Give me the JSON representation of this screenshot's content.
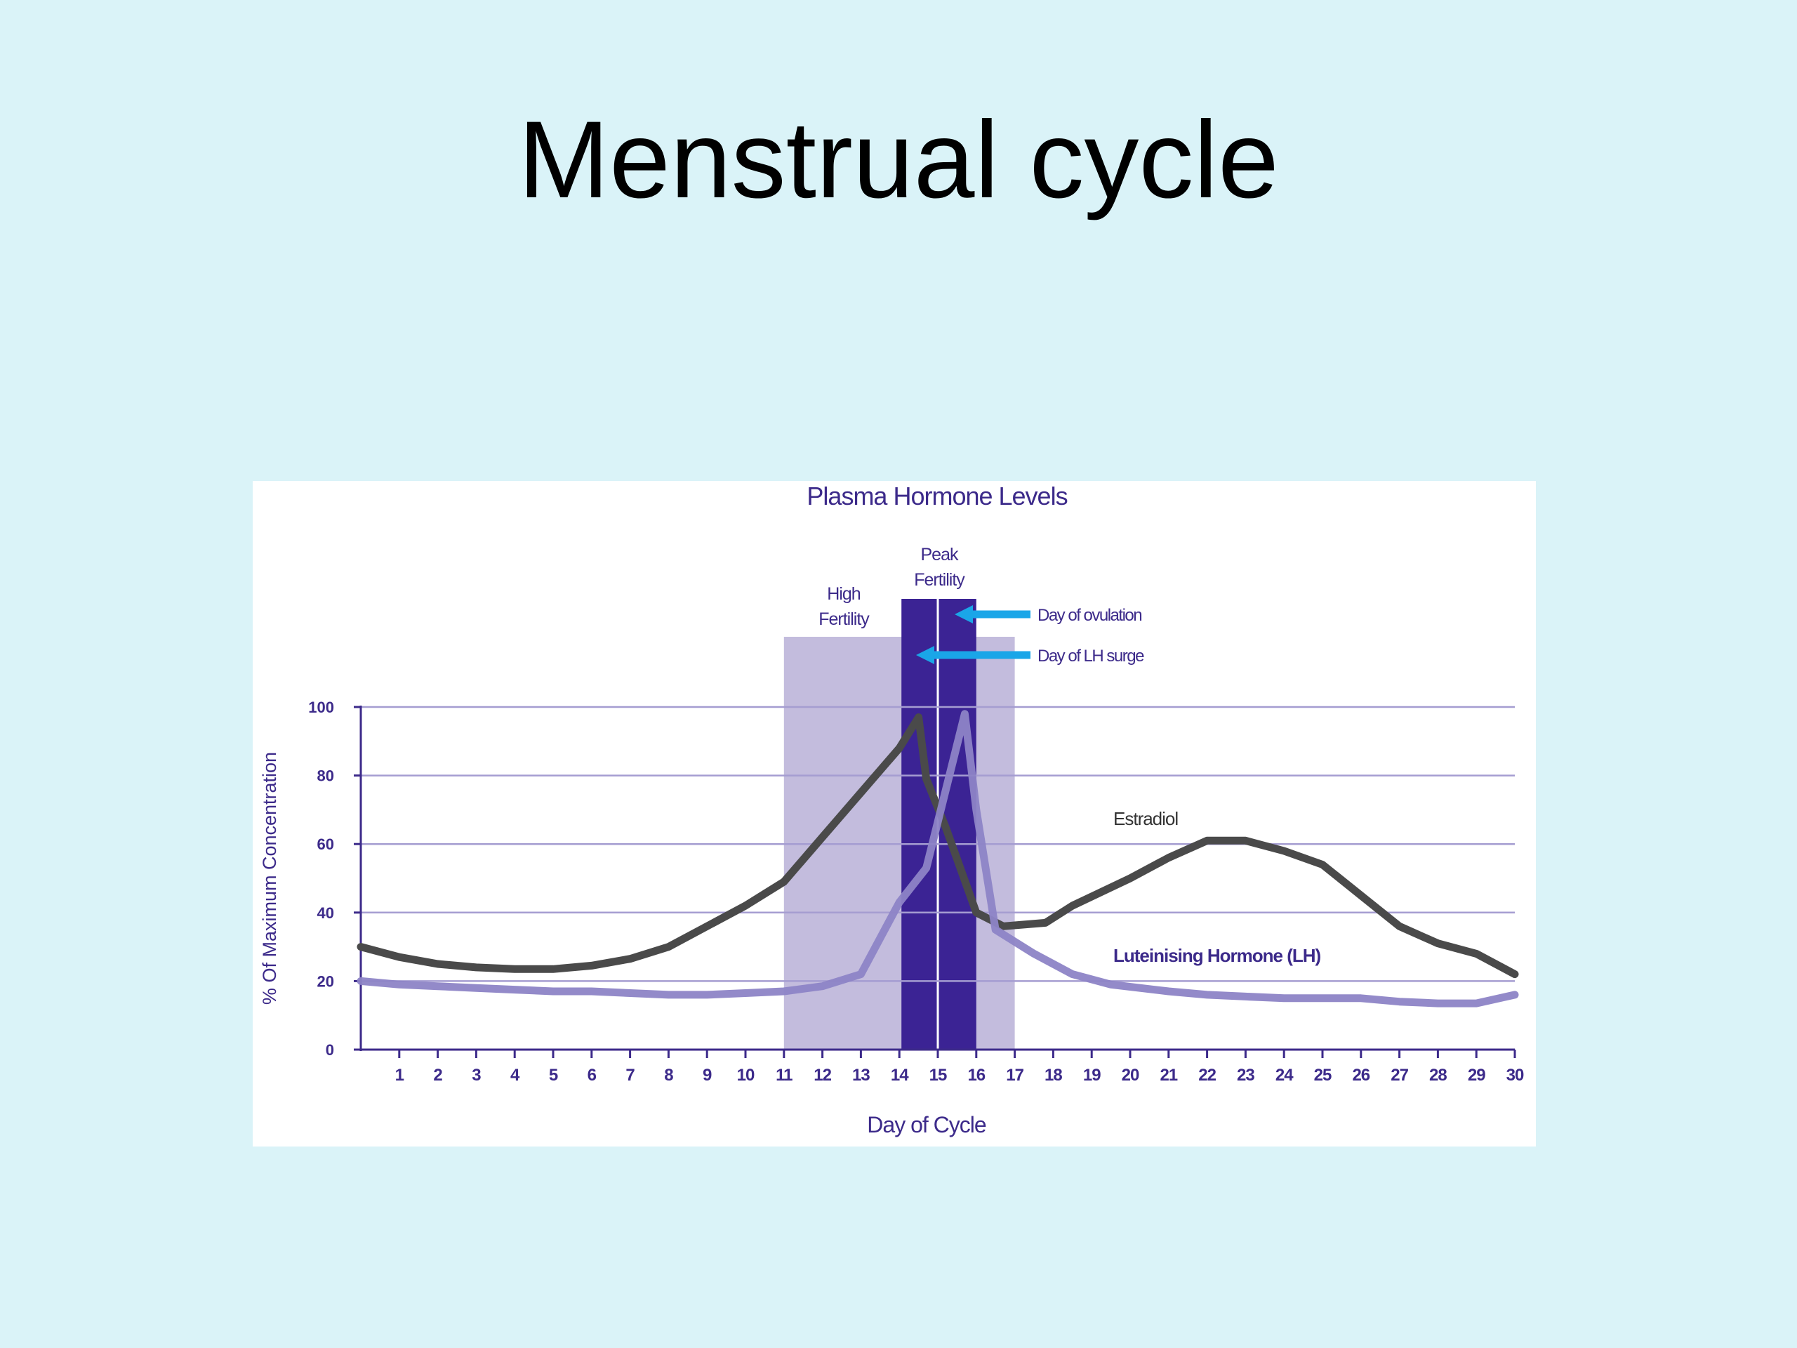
{
  "slide": {
    "title": "Menstrual cycle"
  },
  "colors": {
    "background": "#daf3f8",
    "chart_text": "#3c2a8a",
    "estradiol": "#4a4a4a",
    "lh": "#8d84c6",
    "high_fertility": "#c3bcdd",
    "peak_fertility": "#3b2394",
    "arrow": "#1aa6e8"
  },
  "chart_data": {
    "type": "line",
    "title": "Plasma Hormone Levels",
    "xlabel": "Day of Cycle",
    "ylabel": "% Of Maximum Concentration",
    "xlim": [
      0,
      30
    ],
    "ylim": [
      0,
      100
    ],
    "x_ticks": [
      1,
      2,
      3,
      4,
      5,
      6,
      7,
      8,
      9,
      10,
      11,
      12,
      13,
      14,
      15,
      16,
      17,
      18,
      19,
      20,
      21,
      22,
      23,
      24,
      25,
      26,
      27,
      28,
      29,
      30
    ],
    "y_ticks": [
      0,
      20,
      40,
      60,
      80,
      100
    ],
    "grid": true,
    "series": [
      {
        "name": "Estradiol",
        "color": "#4a4a4a",
        "points": [
          [
            0,
            30
          ],
          [
            1,
            27
          ],
          [
            2,
            25
          ],
          [
            3,
            24
          ],
          [
            4,
            23.5
          ],
          [
            5,
            23.5
          ],
          [
            6,
            24.5
          ],
          [
            7,
            26.5
          ],
          [
            8,
            30
          ],
          [
            9,
            36
          ],
          [
            10,
            42
          ],
          [
            11,
            49
          ],
          [
            12,
            62
          ],
          [
            13,
            75
          ],
          [
            14,
            88
          ],
          [
            14.5,
            97
          ],
          [
            14.7,
            79
          ],
          [
            15.2,
            65
          ],
          [
            16,
            40
          ],
          [
            16.7,
            36
          ],
          [
            17.8,
            37
          ],
          [
            18.5,
            42
          ],
          [
            20,
            50
          ],
          [
            21,
            56
          ],
          [
            22,
            61
          ],
          [
            23,
            61
          ],
          [
            24,
            58
          ],
          [
            25,
            54
          ],
          [
            26,
            45
          ],
          [
            27,
            36
          ],
          [
            28,
            31
          ],
          [
            29,
            28
          ],
          [
            30,
            22
          ]
        ],
        "label_text": "Estradiol"
      },
      {
        "name": "Luteinising Hormone (LH)",
        "color": "#8d84c6",
        "points": [
          [
            0,
            20
          ],
          [
            1,
            19
          ],
          [
            2,
            18.5
          ],
          [
            3,
            18
          ],
          [
            4,
            17.5
          ],
          [
            5,
            17
          ],
          [
            6,
            17
          ],
          [
            7,
            16.5
          ],
          [
            8,
            16
          ],
          [
            9,
            16
          ],
          [
            10,
            16.5
          ],
          [
            11,
            17
          ],
          [
            12,
            18.5
          ],
          [
            13,
            22
          ],
          [
            14,
            43
          ],
          [
            14.7,
            53
          ],
          [
            15.7,
            98
          ],
          [
            16,
            70
          ],
          [
            16.5,
            35
          ],
          [
            17.5,
            28
          ],
          [
            18.5,
            22
          ],
          [
            19.5,
            19
          ],
          [
            21,
            17
          ],
          [
            22,
            16
          ],
          [
            23,
            15.5
          ],
          [
            24,
            15
          ],
          [
            25,
            15
          ],
          [
            26,
            15
          ],
          [
            27,
            14
          ],
          [
            28,
            13.5
          ],
          [
            29,
            13.5
          ],
          [
            30,
            16
          ]
        ],
        "label_text": "Luteinising Hormone (LH)"
      }
    ],
    "shaded_regions": [
      {
        "label": "High Fertility",
        "label_lines": [
          "High",
          "Fertility"
        ],
        "x_start": 11,
        "x_end": 17,
        "color": "#c3bcdd"
      },
      {
        "label": "Peak Fertility",
        "label_lines": [
          "Peak",
          "Fertility"
        ],
        "x_start": 14,
        "x_end": 16,
        "color": "#3b2394"
      }
    ],
    "annotations": [
      {
        "text": "Day of ovulation",
        "x": 15,
        "color": "#1aa6e8"
      },
      {
        "text": "Day of LH surge",
        "x": 14.5,
        "color": "#1aa6e8"
      }
    ]
  }
}
